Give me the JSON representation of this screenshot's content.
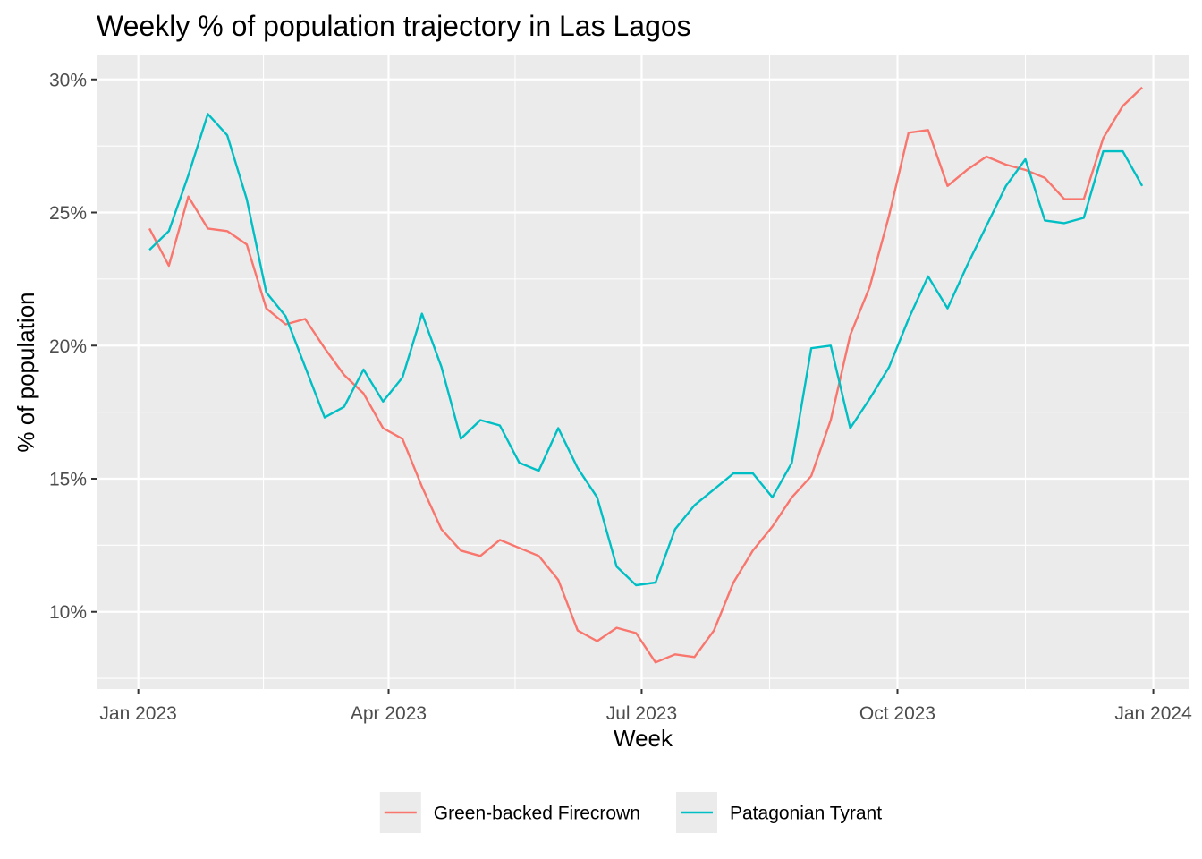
{
  "chart_data": {
    "type": "line",
    "title": "Weekly % of population trajectory in Las Lagos",
    "xlabel": "Week",
    "ylabel": "% of population",
    "x_tick_labels": [
      {
        "date": "2023-01-01",
        "label": "Jan 2023"
      },
      {
        "date": "2023-04-01",
        "label": "Apr 2023"
      },
      {
        "date": "2023-07-01",
        "label": "Jul 2023"
      },
      {
        "date": "2023-10-01",
        "label": "Oct 2023"
      },
      {
        "date": "2024-01-01",
        "label": "Jan 2024"
      }
    ],
    "y_ticks": [
      10,
      15,
      20,
      25,
      30
    ],
    "y_tick_labels": [
      "10%",
      "15%",
      "20%",
      "25%",
      "30%"
    ],
    "xlim": [
      "2022-12-17",
      "2024-01-14"
    ],
    "ylim": [
      7.1,
      30.9
    ],
    "grid": true,
    "legend_position": "bottom",
    "x": [
      "2023-01-05",
      "2023-01-12",
      "2023-01-19",
      "2023-01-26",
      "2023-02-02",
      "2023-02-09",
      "2023-02-16",
      "2023-02-23",
      "2023-03-02",
      "2023-03-09",
      "2023-03-16",
      "2023-03-23",
      "2023-03-30",
      "2023-04-06",
      "2023-04-13",
      "2023-04-20",
      "2023-04-27",
      "2023-05-04",
      "2023-05-11",
      "2023-05-18",
      "2023-05-25",
      "2023-06-01",
      "2023-06-08",
      "2023-06-15",
      "2023-06-22",
      "2023-06-29",
      "2023-07-06",
      "2023-07-13",
      "2023-07-20",
      "2023-07-27",
      "2023-08-03",
      "2023-08-10",
      "2023-08-17",
      "2023-08-24",
      "2023-08-31",
      "2023-09-07",
      "2023-09-14",
      "2023-09-21",
      "2023-09-28",
      "2023-10-05",
      "2023-10-12",
      "2023-10-19",
      "2023-10-26",
      "2023-11-02",
      "2023-11-09",
      "2023-11-16",
      "2023-11-23",
      "2023-11-30",
      "2023-12-07",
      "2023-12-14",
      "2023-12-21",
      "2023-12-28"
    ],
    "series": [
      {
        "name": "Green-backed Firecrown",
        "color": "#F8766D",
        "values": [
          24.4,
          23.0,
          25.6,
          24.4,
          24.3,
          23.8,
          21.4,
          20.8,
          21.0,
          19.9,
          18.9,
          18.2,
          16.9,
          16.5,
          14.7,
          13.1,
          12.3,
          12.1,
          12.7,
          12.4,
          12.1,
          11.2,
          9.3,
          8.9,
          9.4,
          9.2,
          8.1,
          8.4,
          8.3,
          9.3,
          11.1,
          12.3,
          13.2,
          14.3,
          15.1,
          17.2,
          20.4,
          22.2,
          24.9,
          28.0,
          28.1,
          26.0,
          26.6,
          27.1,
          26.8,
          26.6,
          26.3,
          25.5,
          25.5,
          27.8,
          29.0,
          29.7
        ]
      },
      {
        "name": "Patagonian Tyrant",
        "color": "#00BFC4",
        "values": [
          23.6,
          24.3,
          26.4,
          28.7,
          27.9,
          25.5,
          22.0,
          21.1,
          19.2,
          17.3,
          17.7,
          19.1,
          17.9,
          18.8,
          21.2,
          19.2,
          16.5,
          17.2,
          17.0,
          15.6,
          15.3,
          16.9,
          15.4,
          14.3,
          11.7,
          11.0,
          11.1,
          13.1,
          14.0,
          14.6,
          15.2,
          15.2,
          14.3,
          15.6,
          19.9,
          20.0,
          16.9,
          18.0,
          19.2,
          21.0,
          22.6,
          21.4,
          23.0,
          24.5,
          26.0,
          27.0,
          24.7,
          24.6,
          24.8,
          27.3,
          27.3,
          26.0
        ]
      }
    ]
  }
}
